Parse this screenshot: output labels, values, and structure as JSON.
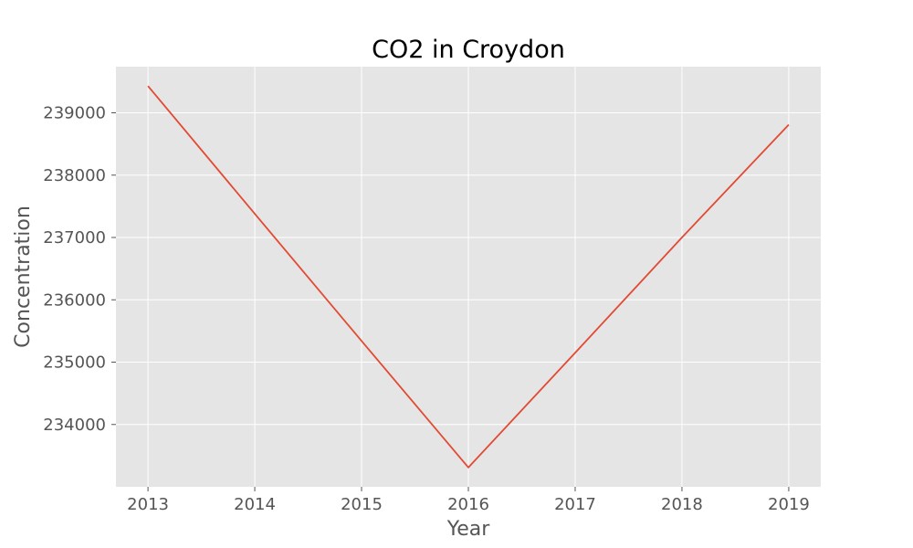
{
  "chart_data": {
    "type": "line",
    "title": "CO2 in Croydon",
    "xlabel": "Year",
    "ylabel": "Concentration",
    "x": [
      2013,
      2014,
      2015,
      2016,
      2017,
      2018,
      2019
    ],
    "series": [
      {
        "values": [
          239430,
          237380,
          235340,
          233310,
          235150,
          237000,
          238810
        ],
        "color": "#E24A33"
      }
    ],
    "xticks": [
      "2013",
      "2014",
      "2015",
      "2016",
      "2017",
      "2018",
      "2019"
    ],
    "yticks": [
      234000,
      235000,
      236000,
      237000,
      238000,
      239000
    ],
    "ytick_labels": [
      "234000",
      "235000",
      "236000",
      "237000",
      "238000",
      "239000"
    ],
    "xlim": [
      2012.7,
      2019.3
    ],
    "ylim": [
      233000,
      239740
    ],
    "grid": true,
    "style": "ggplot",
    "colors": {
      "plot_background": "#E5E5E5",
      "grid": "#FFFFFF",
      "text": "#555555",
      "title": "#000000"
    }
  }
}
